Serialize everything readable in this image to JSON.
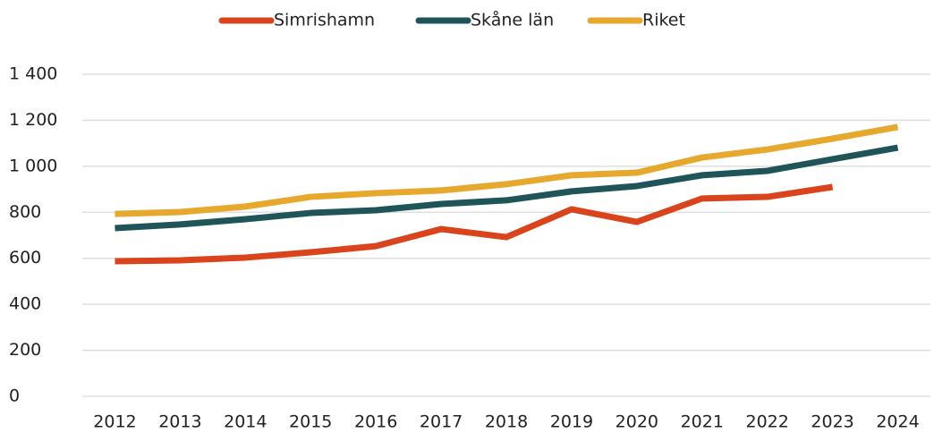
{
  "chart_data": {
    "type": "line",
    "categories": [
      "2012",
      "2013",
      "2014",
      "2015",
      "2016",
      "2017",
      "2018",
      "2019",
      "2020",
      "2021",
      "2022",
      "2023",
      "2024"
    ],
    "series": [
      {
        "name": "Simrishamn",
        "color": "#d9441c",
        "values": [
          587,
          591,
          603,
          626,
          653,
          727,
          692,
          813,
          758,
          860,
          867,
          910,
          null
        ]
      },
      {
        "name": "Skåne län",
        "color": "#1f5459",
        "values": [
          731,
          747,
          770,
          797,
          809,
          836,
          852,
          891,
          914,
          961,
          980,
          1031,
          1081
        ]
      },
      {
        "name": "Riket",
        "color": "#e6a82d",
        "values": [
          793,
          801,
          825,
          867,
          883,
          895,
          922,
          961,
          972,
          1038,
          1073,
          1120,
          1171
        ]
      }
    ],
    "ylim": [
      0,
      1400
    ],
    "yticks": [
      0,
      200,
      400,
      600,
      800,
      {
        "value": 1000,
        "label": "1 000"
      },
      {
        "value": 1200,
        "label": "1 200"
      },
      {
        "value": 1400,
        "label": "1 400"
      }
    ],
    "grid": true,
    "legend": "top"
  }
}
